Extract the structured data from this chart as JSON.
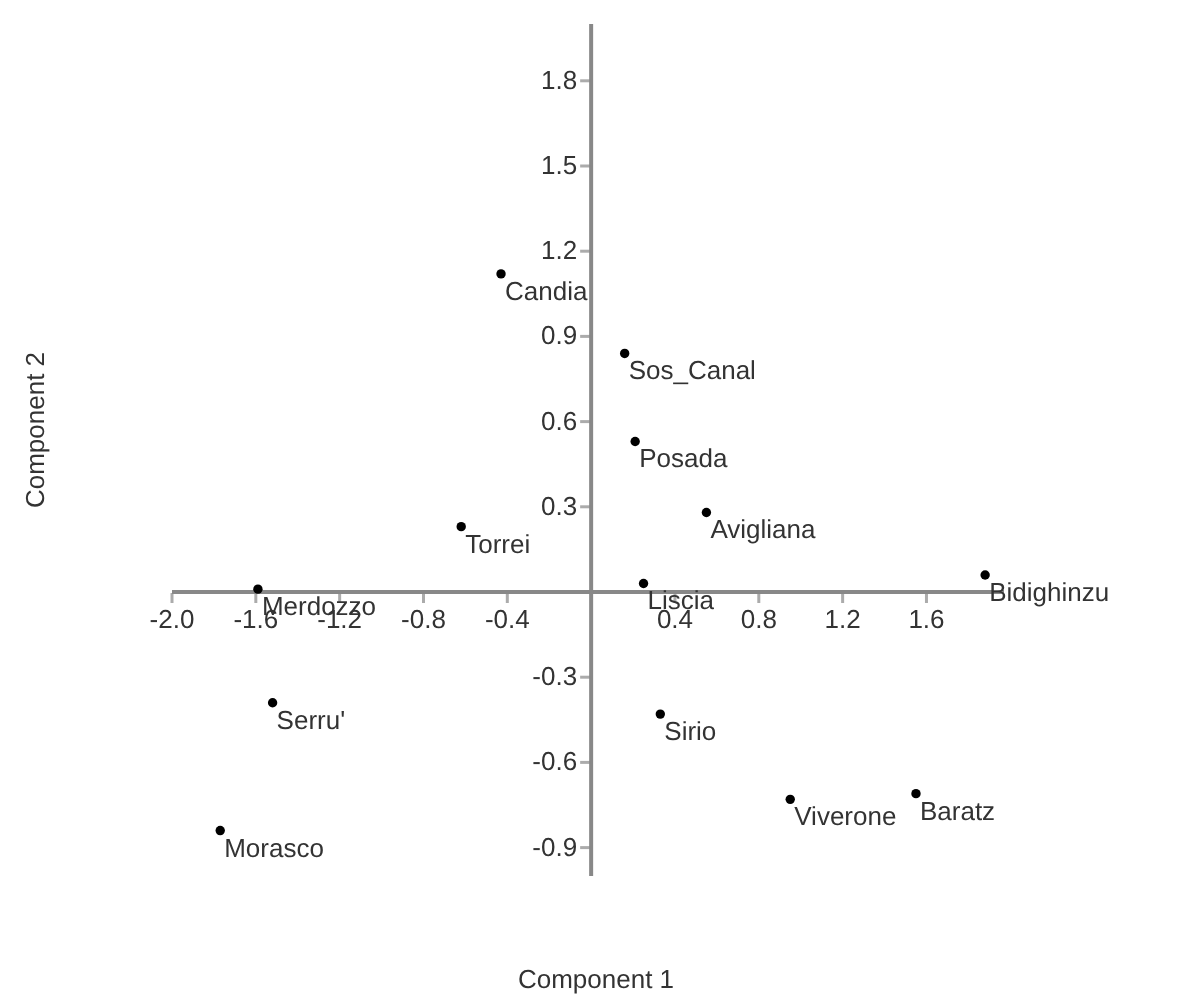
{
  "chart_data": {
    "type": "scatter",
    "xlabel": "Component 1",
    "ylabel": "Component 2",
    "series": [
      {
        "color": "#000000",
        "x": [
          -0.43,
          0.16,
          0.21,
          0.55,
          -0.62,
          -1.59,
          0.25,
          1.88,
          -1.52,
          0.33,
          0.95,
          1.55,
          -1.77
        ],
        "values": [
          1.12,
          0.84,
          0.53,
          0.28,
          0.23,
          0.01,
          0.03,
          0.06,
          -0.39,
          -0.43,
          -0.73,
          -0.71,
          -0.84
        ]
      }
    ],
    "annotations": [
      {
        "text": "Candia",
        "x": -0.43,
        "y": 1.12
      },
      {
        "text": "Sos_Canal",
        "x": 0.16,
        "y": 0.84
      },
      {
        "text": "Posada",
        "x": 0.21,
        "y": 0.53
      },
      {
        "text": "Avigliana",
        "x": 0.55,
        "y": 0.28
      },
      {
        "text": "Torrei",
        "x": -0.62,
        "y": 0.23
      },
      {
        "text": "Merdozzo",
        "x": -1.59,
        "y": 0.01
      },
      {
        "text": "Liscia",
        "x": 0.25,
        "y": 0.03
      },
      {
        "text": "Bidighinzu",
        "x": 1.88,
        "y": 0.06
      },
      {
        "text": "Serru'",
        "x": -1.52,
        "y": -0.39
      },
      {
        "text": "Sirio",
        "x": 0.33,
        "y": -0.43
      },
      {
        "text": "Viverone",
        "x": 0.95,
        "y": -0.73
      },
      {
        "text": "Baratz",
        "x": 1.55,
        "y": -0.71
      },
      {
        "text": "Morasco",
        "x": -1.77,
        "y": -0.84
      }
    ],
    "xlim": [
      -2.0,
      1.97
    ],
    "ylim": [
      -1.0,
      2.0
    ],
    "xticks": [
      {
        "value": -2,
        "label": "-2.0"
      },
      -1.6,
      -1.2,
      -0.8,
      -0.4,
      0.4,
      0.8,
      1.2,
      1.6
    ],
    "yticks": [
      -0.9,
      -0.6,
      -0.3,
      0.3,
      0.6,
      0.9,
      1.2,
      1.5,
      1.8
    ],
    "marker": "circle"
  }
}
